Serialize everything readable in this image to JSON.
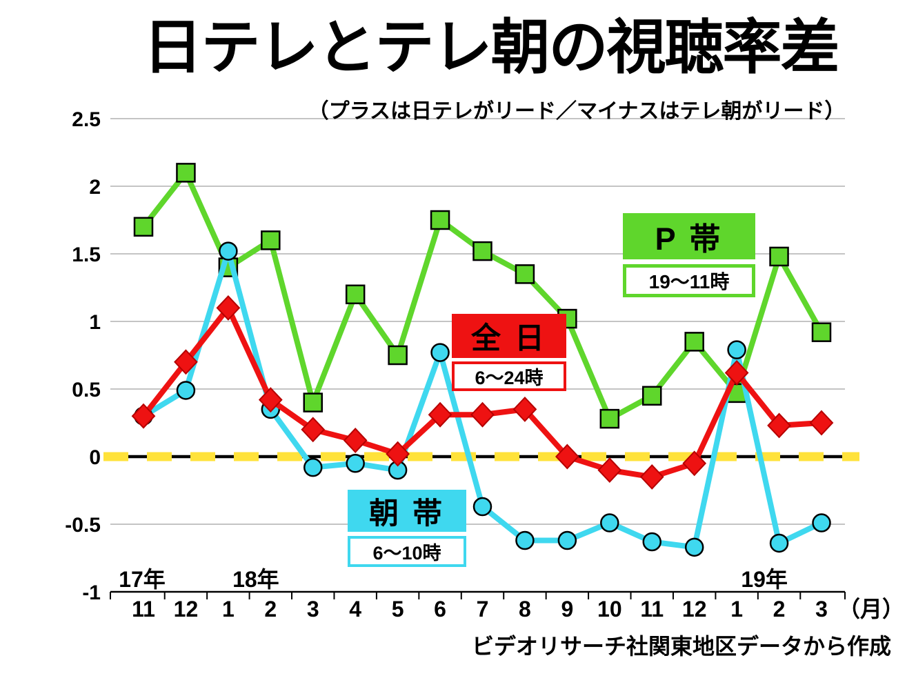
{
  "title": "日テレとテレ朝の視聴率差",
  "subtitle": "（プラスは日テレがリード／マイナスはテレ朝がリード）",
  "source": "ビデオリサーチ社関東地区データから作成",
  "legends": {
    "p_band": {
      "label": "P 帯",
      "time": "19～11時",
      "color": "#5fd62c"
    },
    "zennichi": {
      "label": "全 日",
      "time": "6～24時",
      "color": "#ee1212"
    },
    "asa_band": {
      "label": "朝 帯",
      "time": "6～10時",
      "color": "#3fd8ef"
    }
  },
  "chart_data": {
    "type": "line",
    "title": "日テレとテレ朝の視聴率差",
    "subtitle": "（プラスは日テレがリード／マイナスはテレ朝がリード）",
    "x_labels": [
      "11",
      "12",
      "1",
      "2",
      "3",
      "4",
      "5",
      "6",
      "7",
      "8",
      "9",
      "10",
      "11",
      "12",
      "1",
      "2",
      "3"
    ],
    "x_unit": "（月）",
    "year_markers": [
      {
        "label": "17年",
        "index": 0
      },
      {
        "label": "18年",
        "index": 2
      },
      {
        "label": "19年",
        "index": 14
      }
    ],
    "y_ticks": [
      2.5,
      2,
      1.5,
      1,
      0.5,
      0,
      -0.5,
      -1
    ],
    "ylim": [
      -1,
      2.5
    ],
    "grid": true,
    "zero_line_color": "#000000",
    "zero_dash_color": "#ffe23a",
    "series": [
      {
        "name": "P帯",
        "key": "p",
        "time": "19～11時",
        "color": "#5fd62c",
        "marker": "square",
        "values": [
          1.7,
          2.1,
          1.4,
          1.6,
          0.4,
          1.2,
          0.75,
          1.75,
          1.52,
          1.35,
          1.02,
          0.28,
          0.45,
          0.85,
          0.47,
          1.48,
          0.92
        ]
      },
      {
        "name": "朝帯",
        "key": "asa",
        "time": "6～10時",
        "color": "#3fd8ef",
        "marker": "circle",
        "values": [
          0.3,
          0.49,
          1.52,
          0.35,
          -0.08,
          -0.05,
          -0.1,
          0.77,
          -0.37,
          -0.62,
          -0.62,
          -0.49,
          -0.63,
          -0.67,
          0.79,
          -0.64,
          -0.49
        ]
      },
      {
        "name": "全日",
        "key": "zen",
        "time": "6～24時",
        "color": "#ee1212",
        "marker": "diamond",
        "values": [
          0.3,
          0.7,
          1.1,
          0.42,
          0.2,
          0.12,
          0.02,
          0.31,
          0.31,
          0.35,
          0,
          -0.1,
          -0.15,
          -0.05,
          0.62,
          0.23,
          0.25
        ]
      }
    ]
  }
}
